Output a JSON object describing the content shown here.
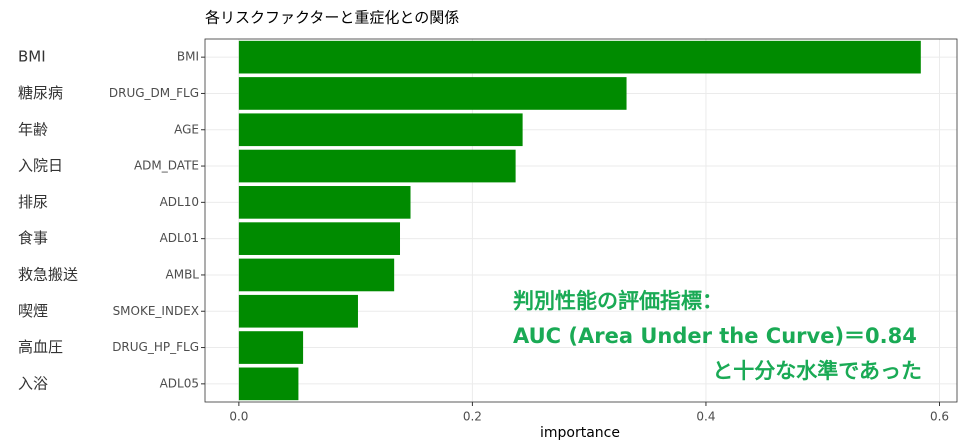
{
  "chart_data": {
    "type": "barh",
    "title": "各リスクファクターと重症化との関係",
    "categories": [
      "BMI",
      "DRUG_DM_FLG",
      "AGE",
      "ADM_DATE",
      "ADL10",
      "ADL01",
      "AMBL",
      "SMOKE_INDEX",
      "DRUG_HP_FLG",
      "ADL05"
    ],
    "category_labels_ja": [
      "BMI",
      "糖尿病",
      "年齢",
      "入院日",
      "排尿",
      "食事",
      "救急搬送",
      "喫煙",
      "高血圧",
      "入浴"
    ],
    "values": [
      0.584,
      0.332,
      0.243,
      0.237,
      0.147,
      0.138,
      0.133,
      0.102,
      0.055,
      0.051
    ],
    "color": "#008b00",
    "xlabel": "importance",
    "xlim": [
      -0.029,
      0.615
    ],
    "xticks": [
      {
        "value": 0,
        "label": "0.0"
      },
      0.2,
      0.4,
      0.6
    ],
    "grid": true,
    "annotations": [
      "判別性能の評価指標：",
      "AUC (Area Under the Curve)＝0.84",
      "と十分な水準であった"
    ]
  }
}
